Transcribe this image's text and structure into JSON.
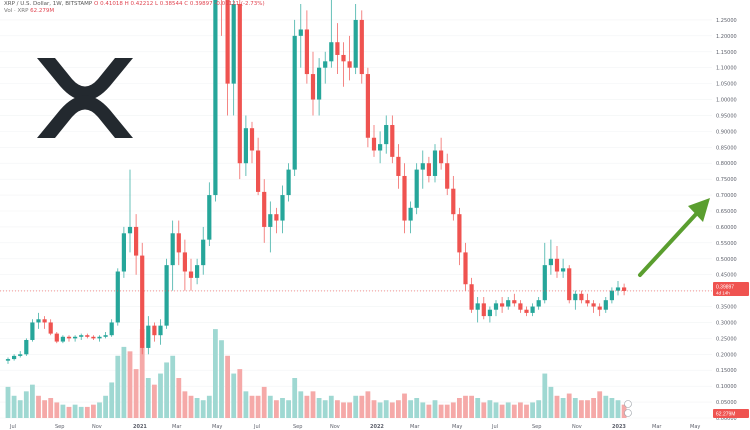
{
  "header": {
    "symbol_line": "XRP / U.S. Dollar, 1W, BITSTAMP",
    "ohlc_o": "O 0.41018",
    "ohlc_h": "H 0.42212",
    "ohlc_l": "L 0.38544",
    "ohlc_c": "C 0.39897",
    "ohlc_change": "-0.01121 (-2.73%)",
    "vol_line": "Vol · XRP",
    "vol_value": "62.279M"
  },
  "price_badge": "0.39897",
  "price_badge_sub": "4d 14h",
  "volume_badge": "62.279M",
  "logo": {
    "icon": "xrp-logo-icon",
    "color": "#23292f"
  },
  "arrow": {
    "icon": "up-right-arrow-icon",
    "color": "#5a9e2f"
  },
  "colors": {
    "bull": "#26a69a",
    "bear": "#ef5350",
    "bull_vol": "#9fd8d2",
    "bear_vol": "#f5a9a8",
    "price_line": "#ef5350"
  },
  "chart_data": {
    "type": "candlestick",
    "symbol": "XRP / U.S. Dollar",
    "interval": "1W",
    "exchange": "BITSTAMP",
    "y_ticks": [
      "1.25000",
      "1.20000",
      "1.15000",
      "1.10000",
      "1.05000",
      "1.00000",
      "0.95000",
      "0.90000",
      "0.85000",
      "0.80000",
      "0.75000",
      "0.70000",
      "0.65000",
      "0.60000",
      "0.55000",
      "0.50000",
      "0.45000",
      "0.40000",
      "0.35000",
      "0.30000",
      "0.25000",
      "0.20000",
      "0.15000",
      "0.10000",
      "0.05000",
      "0.00000"
    ],
    "y_tick_values": [
      1.25,
      1.2,
      1.15,
      1.1,
      1.05,
      1.0,
      0.95,
      0.9,
      0.85,
      0.8,
      0.75,
      0.7,
      0.65,
      0.6,
      0.55,
      0.5,
      0.45,
      0.4,
      0.35,
      0.3,
      0.25,
      0.2,
      0.15,
      0.1,
      0.05,
      0.0
    ],
    "ylim": [
      0.0,
      1.3
    ],
    "x_ticks": [
      "Jul",
      "Sep",
      "Nov",
      "2021",
      "Mar",
      "May",
      "Jul",
      "Sep",
      "Nov",
      "2022",
      "Mar",
      "May",
      "Jul",
      "Sep",
      "Nov",
      "2023",
      "Mar",
      "May"
    ],
    "candles": [
      [
        0.18,
        0.19,
        0.17,
        0.185
      ],
      [
        0.185,
        0.2,
        0.18,
        0.195
      ],
      [
        0.195,
        0.21,
        0.19,
        0.2
      ],
      [
        0.2,
        0.25,
        0.195,
        0.245
      ],
      [
        0.245,
        0.31,
        0.24,
        0.3
      ],
      [
        0.3,
        0.33,
        0.28,
        0.31
      ],
      [
        0.31,
        0.32,
        0.28,
        0.3
      ],
      [
        0.3,
        0.31,
        0.26,
        0.265
      ],
      [
        0.265,
        0.27,
        0.235,
        0.24
      ],
      [
        0.24,
        0.26,
        0.235,
        0.255
      ],
      [
        0.255,
        0.26,
        0.24,
        0.25
      ],
      [
        0.25,
        0.26,
        0.24,
        0.255
      ],
      [
        0.255,
        0.265,
        0.245,
        0.26
      ],
      [
        0.26,
        0.265,
        0.25,
        0.255
      ],
      [
        0.255,
        0.26,
        0.245,
        0.25
      ],
      [
        0.25,
        0.26,
        0.24,
        0.255
      ],
      [
        0.255,
        0.27,
        0.25,
        0.26
      ],
      [
        0.26,
        0.31,
        0.255,
        0.3
      ],
      [
        0.3,
        0.47,
        0.29,
        0.46
      ],
      [
        0.46,
        0.6,
        0.44,
        0.58
      ],
      [
        0.58,
        0.78,
        0.52,
        0.6
      ],
      [
        0.6,
        0.64,
        0.45,
        0.51
      ],
      [
        0.51,
        0.55,
        0.2,
        0.22
      ],
      [
        0.22,
        0.32,
        0.2,
        0.29
      ],
      [
        0.29,
        0.3,
        0.24,
        0.26
      ],
      [
        0.26,
        0.31,
        0.23,
        0.29
      ],
      [
        0.29,
        0.5,
        0.28,
        0.48
      ],
      [
        0.48,
        0.62,
        0.4,
        0.58
      ],
      [
        0.58,
        0.62,
        0.48,
        0.52
      ],
      [
        0.52,
        0.56,
        0.4,
        0.46
      ],
      [
        0.46,
        0.5,
        0.4,
        0.44
      ],
      [
        0.44,
        0.5,
        0.42,
        0.48
      ],
      [
        0.48,
        0.6,
        0.45,
        0.56
      ],
      [
        0.56,
        0.74,
        0.54,
        0.7
      ],
      [
        0.7,
        1.45,
        0.68,
        1.4
      ],
      [
        1.4,
        1.6,
        1.2,
        1.35
      ],
      [
        1.35,
        1.5,
        0.95,
        1.05
      ],
      [
        1.05,
        1.4,
        0.95,
        1.3
      ],
      [
        1.3,
        1.35,
        0.75,
        0.8
      ],
      [
        0.8,
        0.95,
        0.76,
        0.91
      ],
      [
        0.91,
        0.93,
        0.8,
        0.84
      ],
      [
        0.84,
        0.88,
        0.7,
        0.71
      ],
      [
        0.71,
        0.75,
        0.55,
        0.6
      ],
      [
        0.6,
        0.68,
        0.52,
        0.64
      ],
      [
        0.64,
        0.66,
        0.58,
        0.62
      ],
      [
        0.62,
        0.73,
        0.58,
        0.7
      ],
      [
        0.7,
        0.8,
        0.68,
        0.78
      ],
      [
        0.78,
        1.25,
        0.76,
        1.2
      ],
      [
        1.2,
        1.3,
        1.1,
        1.22
      ],
      [
        1.22,
        1.28,
        1.05,
        1.08
      ],
      [
        1.08,
        1.15,
        0.95,
        1.0
      ],
      [
        1.0,
        1.13,
        0.95,
        1.1
      ],
      [
        1.1,
        1.15,
        1.05,
        1.12
      ],
      [
        1.12,
        1.35,
        1.1,
        1.18
      ],
      [
        1.18,
        1.24,
        1.08,
        1.14
      ],
      [
        1.14,
        1.18,
        1.04,
        1.12
      ],
      [
        1.12,
        1.2,
        1.06,
        1.1
      ],
      [
        1.1,
        1.3,
        1.08,
        1.25
      ],
      [
        1.25,
        1.28,
        1.05,
        1.08
      ],
      [
        1.08,
        1.1,
        0.85,
        0.88
      ],
      [
        0.88,
        0.92,
        0.82,
        0.84
      ],
      [
        0.84,
        0.9,
        0.8,
        0.86
      ],
      [
        0.86,
        0.95,
        0.83,
        0.92
      ],
      [
        0.92,
        0.95,
        0.8,
        0.82
      ],
      [
        0.82,
        0.86,
        0.72,
        0.76
      ],
      [
        0.76,
        0.8,
        0.58,
        0.62
      ],
      [
        0.62,
        0.68,
        0.58,
        0.66
      ],
      [
        0.66,
        0.8,
        0.64,
        0.78
      ],
      [
        0.78,
        0.84,
        0.72,
        0.8
      ],
      [
        0.8,
        0.82,
        0.74,
        0.76
      ],
      [
        0.76,
        0.86,
        0.74,
        0.84
      ],
      [
        0.84,
        0.88,
        0.78,
        0.8
      ],
      [
        0.8,
        0.83,
        0.7,
        0.72
      ],
      [
        0.72,
        0.76,
        0.62,
        0.64
      ],
      [
        0.64,
        0.66,
        0.48,
        0.52
      ],
      [
        0.52,
        0.55,
        0.4,
        0.42
      ],
      [
        0.42,
        0.44,
        0.33,
        0.34
      ],
      [
        0.34,
        0.38,
        0.3,
        0.36
      ],
      [
        0.36,
        0.38,
        0.31,
        0.32
      ],
      [
        0.32,
        0.35,
        0.3,
        0.34
      ],
      [
        0.34,
        0.37,
        0.32,
        0.36
      ],
      [
        0.36,
        0.38,
        0.33,
        0.35
      ],
      [
        0.35,
        0.38,
        0.34,
        0.37
      ],
      [
        0.37,
        0.39,
        0.35,
        0.36
      ],
      [
        0.36,
        0.37,
        0.33,
        0.34
      ],
      [
        0.34,
        0.35,
        0.32,
        0.33
      ],
      [
        0.33,
        0.36,
        0.32,
        0.35
      ],
      [
        0.35,
        0.38,
        0.34,
        0.37
      ],
      [
        0.37,
        0.55,
        0.36,
        0.48
      ],
      [
        0.48,
        0.56,
        0.45,
        0.5
      ],
      [
        0.5,
        0.54,
        0.44,
        0.46
      ],
      [
        0.46,
        0.5,
        0.44,
        0.47
      ],
      [
        0.47,
        0.48,
        0.36,
        0.37
      ],
      [
        0.37,
        0.4,
        0.34,
        0.39
      ],
      [
        0.39,
        0.4,
        0.36,
        0.37
      ],
      [
        0.37,
        0.39,
        0.35,
        0.36
      ],
      [
        0.36,
        0.37,
        0.33,
        0.35
      ],
      [
        0.35,
        0.36,
        0.32,
        0.34
      ],
      [
        0.34,
        0.38,
        0.33,
        0.37
      ],
      [
        0.37,
        0.41,
        0.36,
        0.4
      ],
      [
        0.4,
        0.43,
        0.385,
        0.41
      ],
      [
        0.41,
        0.42212,
        0.38544,
        0.39897
      ]
    ],
    "volumes": [
      [
        0.14,
        1
      ],
      [
        0.1,
        1
      ],
      [
        0.08,
        1
      ],
      [
        0.12,
        1
      ],
      [
        0.15,
        1
      ],
      [
        0.1,
        0
      ],
      [
        0.08,
        0
      ],
      [
        0.09,
        0
      ],
      [
        0.07,
        0
      ],
      [
        0.06,
        1
      ],
      [
        0.05,
        0
      ],
      [
        0.06,
        1
      ],
      [
        0.05,
        1
      ],
      [
        0.05,
        0
      ],
      [
        0.06,
        0
      ],
      [
        0.07,
        1
      ],
      [
        0.1,
        1
      ],
      [
        0.16,
        1
      ],
      [
        0.28,
        1
      ],
      [
        0.32,
        1
      ],
      [
        0.3,
        0
      ],
      [
        0.22,
        0
      ],
      [
        0.4,
        0
      ],
      [
        0.18,
        1
      ],
      [
        0.15,
        0
      ],
      [
        0.2,
        1
      ],
      [
        0.25,
        1
      ],
      [
        0.28,
        1
      ],
      [
        0.18,
        0
      ],
      [
        0.12,
        0
      ],
      [
        0.1,
        0
      ],
      [
        0.09,
        1
      ],
      [
        0.08,
        1
      ],
      [
        0.1,
        1
      ],
      [
        0.4,
        1
      ],
      [
        0.35,
        1
      ],
      [
        0.28,
        0
      ],
      [
        0.2,
        1
      ],
      [
        0.22,
        0
      ],
      [
        0.12,
        1
      ],
      [
        0.1,
        0
      ],
      [
        0.1,
        0
      ],
      [
        0.14,
        0
      ],
      [
        0.1,
        1
      ],
      [
        0.08,
        0
      ],
      [
        0.09,
        1
      ],
      [
        0.08,
        1
      ],
      [
        0.18,
        1
      ],
      [
        0.12,
        1
      ],
      [
        0.1,
        0
      ],
      [
        0.12,
        0
      ],
      [
        0.09,
        1
      ],
      [
        0.08,
        1
      ],
      [
        0.1,
        1
      ],
      [
        0.08,
        0
      ],
      [
        0.07,
        0
      ],
      [
        0.07,
        0
      ],
      [
        0.1,
        1
      ],
      [
        0.1,
        0
      ],
      [
        0.12,
        0
      ],
      [
        0.08,
        0
      ],
      [
        0.07,
        1
      ],
      [
        0.08,
        1
      ],
      [
        0.07,
        0
      ],
      [
        0.08,
        0
      ],
      [
        0.11,
        0
      ],
      [
        0.08,
        1
      ],
      [
        0.09,
        1
      ],
      [
        0.07,
        1
      ],
      [
        0.06,
        0
      ],
      [
        0.08,
        1
      ],
      [
        0.06,
        0
      ],
      [
        0.06,
        0
      ],
      [
        0.07,
        0
      ],
      [
        0.09,
        0
      ],
      [
        0.1,
        0
      ],
      [
        0.1,
        0
      ],
      [
        0.09,
        1
      ],
      [
        0.07,
        0
      ],
      [
        0.08,
        1
      ],
      [
        0.07,
        1
      ],
      [
        0.06,
        0
      ],
      [
        0.07,
        1
      ],
      [
        0.06,
        0
      ],
      [
        0.07,
        0
      ],
      [
        0.06,
        0
      ],
      [
        0.07,
        1
      ],
      [
        0.08,
        1
      ],
      [
        0.2,
        1
      ],
      [
        0.14,
        1
      ],
      [
        0.1,
        0
      ],
      [
        0.09,
        1
      ],
      [
        0.11,
        0
      ],
      [
        0.09,
        1
      ],
      [
        0.08,
        0
      ],
      [
        0.08,
        0
      ],
      [
        0.09,
        0
      ],
      [
        0.12,
        0
      ],
      [
        0.1,
        1
      ],
      [
        0.09,
        1
      ],
      [
        0.08,
        1
      ],
      [
        0.06,
        0
      ]
    ],
    "vol_scale_max": 0.45,
    "last_price": 0.39897
  }
}
